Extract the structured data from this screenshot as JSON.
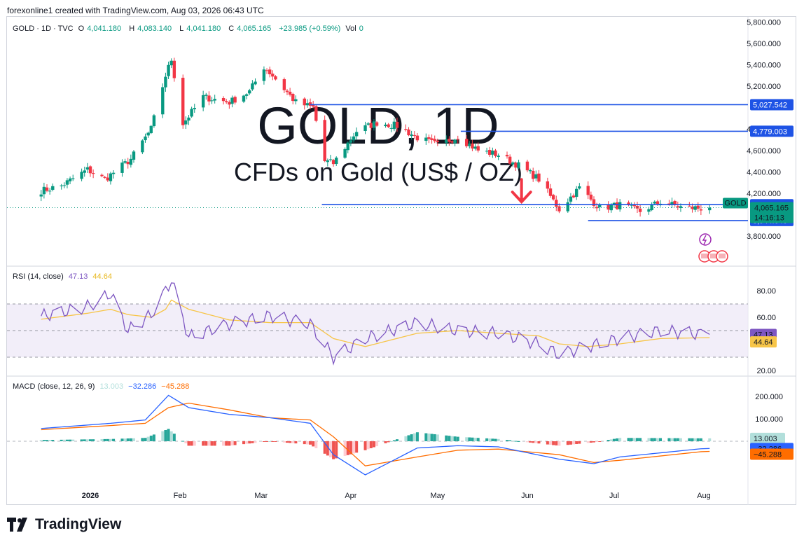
{
  "header": {
    "attribution": "forexonline1 created with TradingView.com, Aug 03, 2026 06:43 UTC"
  },
  "legend": {
    "symbol": "GOLD · 1D · TVC",
    "open_label": "O",
    "open": "4,041.180",
    "high_label": "H",
    "high": "4,083.140",
    "low_label": "L",
    "low": "4,041.180",
    "close_label": "C",
    "close": "4,065.165",
    "change": "+23.985 (+0.59%)",
    "vol_label": "Vol",
    "vol": "0"
  },
  "watermark": {
    "title": "GOLD, 1D",
    "subtitle": "CFDs on Gold (US$ / OZ)"
  },
  "price_axis": {
    "ticks": [
      "5,800.000",
      "5,600.000",
      "5,400.000",
      "5,200.000",
      "4,800.000",
      "4,600.000",
      "4,400.000",
      "4,200.000",
      "3,800.000"
    ],
    "tick_values": [
      5800,
      5600,
      5400,
      5200,
      4800,
      4600,
      4400,
      4200,
      3800
    ],
    "last_tick_value": 4000,
    "last_tick_label": "4,000.000"
  },
  "levels": [
    {
      "value": 5027.542,
      "label": "5,027.542"
    },
    {
      "value": 4779.003,
      "label": "4,779.003"
    },
    {
      "value": 4093.287,
      "label": "4,093.287"
    },
    {
      "value": 3944.646,
      "label": "3,944.646"
    }
  ],
  "current": {
    "symbol_tag": "GOLD",
    "price": "4,065.165",
    "countdown": "14:16:13"
  },
  "time_axis": {
    "labels": [
      "2026",
      "Feb",
      "Mar",
      "Apr",
      "May",
      "Jun",
      "Jul",
      "Aug"
    ]
  },
  "rsi": {
    "label": "RSI (14, close)",
    "value": "47.13",
    "ma": "44.64",
    "ticks": [
      "80.00",
      "60.00",
      "20.00"
    ],
    "tick_values": [
      80,
      60,
      20
    ],
    "band_upper": 70,
    "band_mid": 50,
    "band_lower": 30,
    "value_num": 47.13,
    "ma_num": 44.64
  },
  "macd": {
    "label": "MACD (close, 12, 26, 9)",
    "hist": "13.003",
    "macd": "−32.286",
    "signal": "−45.288",
    "ticks": [
      "200.000",
      "100.000"
    ],
    "tick_values": [
      200,
      100
    ],
    "hist_num": 13.003,
    "macd_num": -32.286,
    "signal_num": -45.288
  },
  "colors": {
    "up": "#089981",
    "down": "#f23645",
    "level": "#1e53e5",
    "rsi": "#7e57c2",
    "rsi_ma": "#f7c548",
    "macd": "#2962ff",
    "signal": "#ff6d00",
    "rsi_bg": "#ede7f6"
  },
  "brand": {
    "name": "TradingView"
  },
  "chart_data": {
    "type": "candlestick",
    "title": "GOLD · 1D · TVC",
    "x_range": [
      "2026-01-01",
      "2026-08-03"
    ],
    "ylim": [
      3780,
      5860
    ],
    "annotations": [
      "down arrow near 4,093.287 level",
      "horizontal levels at 5,027.542, 4,779.003, 4,093.287, 3,944.646"
    ],
    "close_waypoints": {
      "x": [
        "2025-12-13",
        "2025-12-22",
        "2025-12-31",
        "2026-01-06",
        "2026-01-15",
        "2026-01-22",
        "2026-01-27",
        "2026-01-29",
        "2026-02-02",
        "2026-02-09",
        "2026-02-18",
        "2026-02-25",
        "2026-03-02",
        "2026-03-05",
        "2026-03-13",
        "2026-03-19",
        "2026-03-23",
        "2026-03-26",
        "2026-04-03",
        "2026-04-10",
        "2026-04-17",
        "2026-04-24",
        "2026-05-01",
        "2026-05-08",
        "2026-05-15",
        "2026-05-22",
        "2026-05-29",
        "2026-06-05",
        "2026-06-12",
        "2026-06-19",
        "2026-06-26",
        "2026-07-03",
        "2026-07-10",
        "2026-07-17",
        "2026-07-24",
        "2026-07-31",
        "2026-08-03"
      ],
      "close": [
        4210,
        4270,
        4420,
        4330,
        4520,
        4800,
        5300,
        5450,
        4850,
        5100,
        5050,
        5150,
        5380,
        5300,
        5050,
        5000,
        4500,
        4480,
        4780,
        4860,
        4830,
        4720,
        4650,
        4730,
        4600,
        4560,
        4460,
        4330,
        4050,
        4250,
        4060,
        4090,
        4030,
        4120,
        4070,
        4060,
        4065
      ]
    }
  }
}
